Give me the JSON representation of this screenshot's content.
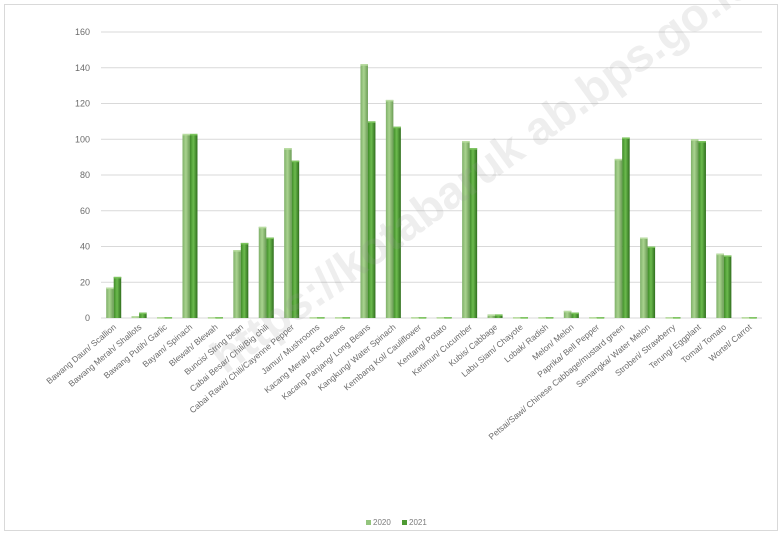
{
  "chart_data": {
    "type": "bar",
    "ylim": [
      0,
      160
    ],
    "yticks": [
      0,
      20,
      40,
      60,
      80,
      100,
      120,
      140,
      160
    ],
    "grid": true,
    "legend_position": "bottom",
    "categories": [
      "Bawang Daun/ Scallion",
      "Bawang Merah/ Shallots",
      "Bawang Putih/ Garlic",
      "Bayam/ Spinach",
      "Blewah/ Blewah",
      "Buncis/ String bean",
      "Cabai Besar/ Chili/Big chili",
      "Cabai Rawit/ Chili/Cayenne Pepper",
      "Jamur/ Mushrooms",
      "Kacang Merah/ Red Beans",
      "Kacang Panjang/ Long Beans",
      "Kangkung/ Water Spinach",
      "Kembang Kol/ Cauliflower",
      "Kentang/ Potato",
      "Ketimun/ Cucumber",
      "Kubis/ Cabbage",
      "Labu Siam/ Chayote",
      "Lobak/ Radish",
      "Melon/ Melon",
      "Paprika/ Bell Pepper",
      "Petsai/Sawi/ Chinese Cabbage/mustard green",
      "Semangka/ Water Melon",
      "Stroberi/ Strawberry",
      "Terung/ Eggplant",
      "Tomat/ Tomato",
      "Wortel/ Carrot"
    ],
    "series": [
      {
        "name": "2020",
        "color": "#93c47d",
        "values": [
          17,
          1,
          0,
          103,
          0,
          38,
          51,
          95,
          0,
          0,
          142,
          122,
          0,
          0,
          99,
          2,
          0,
          0,
          4,
          0,
          89,
          45,
          0,
          100,
          36,
          0
        ]
      },
      {
        "name": "2021",
        "color": "#4e9a33",
        "values": [
          23,
          3,
          0,
          103,
          0,
          42,
          45,
          88,
          0,
          0,
          110,
          107,
          0,
          0,
          95,
          2,
          0,
          0,
          3,
          0,
          101,
          40,
          0,
          99,
          35,
          0
        ]
      }
    ]
  },
  "watermark": "https://kotabaruk ab.bps.go.id"
}
